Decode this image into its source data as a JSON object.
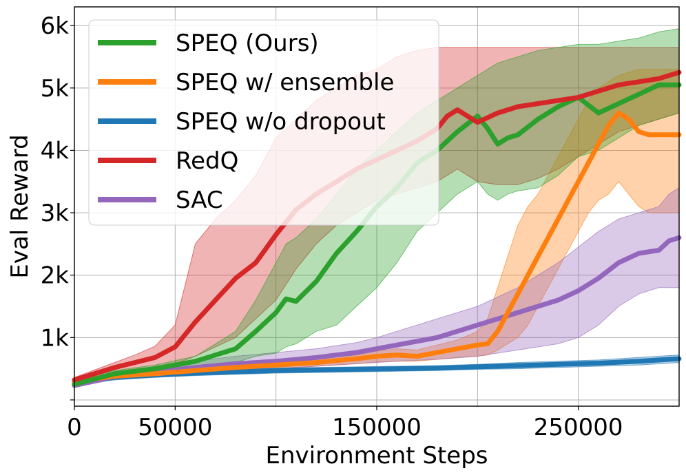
{
  "chart_data": {
    "type": "line",
    "title": "",
    "xlabel": "Environment Steps",
    "ylabel": "Eval Reward",
    "xlim": [
      0,
      300000
    ],
    "ylim": [
      -100,
      6300
    ],
    "x_ticks": [
      {
        "value": 0,
        "label": "0"
      },
      {
        "value": 50000,
        "label": "50000"
      },
      {
        "value": 150000,
        "label": "150000"
      },
      {
        "value": 250000,
        "label": "250000"
      }
    ],
    "x_grid": [
      0,
      50000,
      100000,
      150000,
      200000,
      250000,
      300000
    ],
    "y_ticks": [
      {
        "value": 0,
        "label": ""
      },
      {
        "value": 1000,
        "label": "1k"
      },
      {
        "value": 2000,
        "label": "2k"
      },
      {
        "value": 3000,
        "label": "3k"
      },
      {
        "value": 4000,
        "label": "4k"
      },
      {
        "value": 5000,
        "label": "5k"
      },
      {
        "value": 6000,
        "label": "6k"
      }
    ],
    "grid": true,
    "legend_position": "top-left",
    "series": [
      {
        "name": "SPEQ (Ours)",
        "color": "#2ca02c",
        "x": [
          0,
          20000,
          40000,
          60000,
          70000,
          80000,
          90000,
          100000,
          105000,
          110000,
          120000,
          130000,
          140000,
          150000,
          160000,
          170000,
          180000,
          190000,
          200000,
          205000,
          210000,
          215000,
          220000,
          230000,
          240000,
          250000,
          260000,
          270000,
          280000,
          290000,
          300000
        ],
        "mean": [
          250,
          420,
          500,
          620,
          720,
          820,
          1100,
          1400,
          1620,
          1580,
          1900,
          2350,
          2700,
          3100,
          3400,
          3800,
          4000,
          4300,
          4550,
          4350,
          4100,
          4200,
          4250,
          4500,
          4700,
          4850,
          4600,
          4750,
          4900,
          5050,
          5050
        ],
        "lower": [
          200,
          380,
          450,
          520,
          560,
          600,
          700,
          750,
          850,
          900,
          1100,
          1200,
          1500,
          1800,
          2200,
          2700,
          3000,
          3300,
          3500,
          3300,
          3200,
          3300,
          3350,
          3400,
          3600,
          3900,
          4000,
          4200,
          4400,
          4500,
          4600
        ],
        "upper": [
          320,
          470,
          560,
          700,
          900,
          1100,
          1600,
          2200,
          2500,
          2600,
          2900,
          3300,
          3700,
          4000,
          4300,
          4600,
          4800,
          5000,
          5200,
          5300,
          5400,
          5450,
          5500,
          5600,
          5650,
          5700,
          5700,
          5750,
          5800,
          5900,
          5950
        ]
      },
      {
        "name": "SPEQ w/ ensemble",
        "color": "#ff7f0e",
        "x": [
          0,
          20000,
          40000,
          60000,
          80000,
          100000,
          120000,
          140000,
          150000,
          160000,
          170000,
          180000,
          190000,
          200000,
          205000,
          210000,
          215000,
          220000,
          225000,
          230000,
          235000,
          240000,
          245000,
          250000,
          255000,
          260000,
          265000,
          270000,
          275000,
          280000,
          285000,
          290000,
          300000
        ],
        "mean": [
          300,
          380,
          420,
          470,
          520,
          560,
          600,
          660,
          700,
          720,
          700,
          760,
          820,
          880,
          900,
          1100,
          1400,
          1700,
          2000,
          2300,
          2600,
          2900,
          3200,
          3500,
          3800,
          4100,
          4400,
          4600,
          4500,
          4300,
          4250,
          4250,
          4250
        ],
        "lower": [
          260,
          340,
          380,
          420,
          470,
          500,
          540,
          580,
          610,
          620,
          620,
          650,
          680,
          700,
          720,
          800,
          900,
          1000,
          1200,
          1500,
          1800,
          2100,
          2400,
          2700,
          3000,
          3200,
          3300,
          3500,
          3300,
          3100,
          3000,
          3000,
          3000
        ],
        "upper": [
          340,
          420,
          470,
          530,
          580,
          620,
          660,
          720,
          780,
          820,
          800,
          880,
          960,
          1100,
          1300,
          1800,
          2300,
          2800,
          3100,
          3300,
          3600,
          3900,
          4200,
          4500,
          4800,
          5000,
          5100,
          5200,
          5250,
          5300,
          5300,
          5300,
          5300
        ]
      },
      {
        "name": "SPEQ w/o dropout",
        "color": "#1f77b4",
        "x": [
          0,
          20000,
          40000,
          60000,
          80000,
          100000,
          120000,
          140000,
          160000,
          180000,
          200000,
          220000,
          240000,
          260000,
          280000,
          300000
        ],
        "mean": [
          280,
          360,
          400,
          430,
          450,
          470,
          480,
          490,
          500,
          510,
          530,
          550,
          570,
          590,
          620,
          660
        ],
        "lower": [
          240,
          320,
          360,
          390,
          410,
          430,
          440,
          450,
          460,
          470,
          490,
          500,
          520,
          540,
          560,
          600
        ],
        "upper": [
          320,
          400,
          440,
          470,
          490,
          510,
          520,
          530,
          540,
          550,
          570,
          600,
          620,
          640,
          680,
          720
        ]
      },
      {
        "name": "RedQ",
        "color": "#d62728",
        "x": [
          0,
          10000,
          20000,
          30000,
          40000,
          50000,
          60000,
          70000,
          80000,
          90000,
          100000,
          110000,
          120000,
          130000,
          140000,
          150000,
          160000,
          170000,
          180000,
          185000,
          190000,
          195000,
          200000,
          210000,
          220000,
          230000,
          240000,
          250000,
          260000,
          270000,
          280000,
          290000,
          300000
        ],
        "mean": [
          320,
          420,
          520,
          600,
          680,
          850,
          1250,
          1600,
          1950,
          2200,
          2650,
          3050,
          3300,
          3500,
          3700,
          3850,
          4000,
          4150,
          4350,
          4550,
          4650,
          4550,
          4450,
          4600,
          4700,
          4750,
          4800,
          4850,
          4950,
          5050,
          5100,
          5150,
          5250
        ],
        "lower": [
          280,
          360,
          420,
          480,
          520,
          580,
          700,
          850,
          1000,
          1300,
          1600,
          2100,
          2500,
          2800,
          3000,
          3200,
          3300,
          3400,
          3500,
          3600,
          3700,
          3600,
          3500,
          3450,
          3450,
          3550,
          3700,
          3900,
          4100,
          4300,
          4400,
          4500,
          4600
        ],
        "upper": [
          360,
          480,
          600,
          720,
          860,
          1200,
          2500,
          2900,
          3200,
          3600,
          4200,
          4500,
          4800,
          5000,
          5200,
          5300,
          5500,
          5600,
          5650,
          5650,
          5650,
          5650,
          5650,
          5650,
          5650,
          5650,
          5650,
          5650,
          5650,
          5650,
          5650,
          5650,
          5650
        ]
      },
      {
        "name": "SAC",
        "color": "#9467bd",
        "x": [
          0,
          20000,
          40000,
          60000,
          80000,
          100000,
          120000,
          140000,
          150000,
          160000,
          180000,
          200000,
          220000,
          240000,
          250000,
          260000,
          270000,
          280000,
          290000,
          295000,
          300000
        ],
        "mean": [
          230,
          380,
          450,
          520,
          580,
          620,
          680,
          760,
          820,
          880,
          1000,
          1200,
          1400,
          1600,
          1750,
          1950,
          2200,
          2350,
          2400,
          2550,
          2600
        ],
        "lower": [
          200,
          330,
          380,
          420,
          460,
          500,
          540,
          580,
          600,
          620,
          650,
          700,
          800,
          900,
          1000,
          1200,
          1500,
          1700,
          1800,
          1800,
          1800
        ],
        "upper": [
          260,
          430,
          520,
          620,
          700,
          760,
          820,
          920,
          1000,
          1100,
          1300,
          1500,
          1800,
          2200,
          2450,
          2700,
          2900,
          3000,
          3100,
          3300,
          3400
        ]
      }
    ]
  }
}
